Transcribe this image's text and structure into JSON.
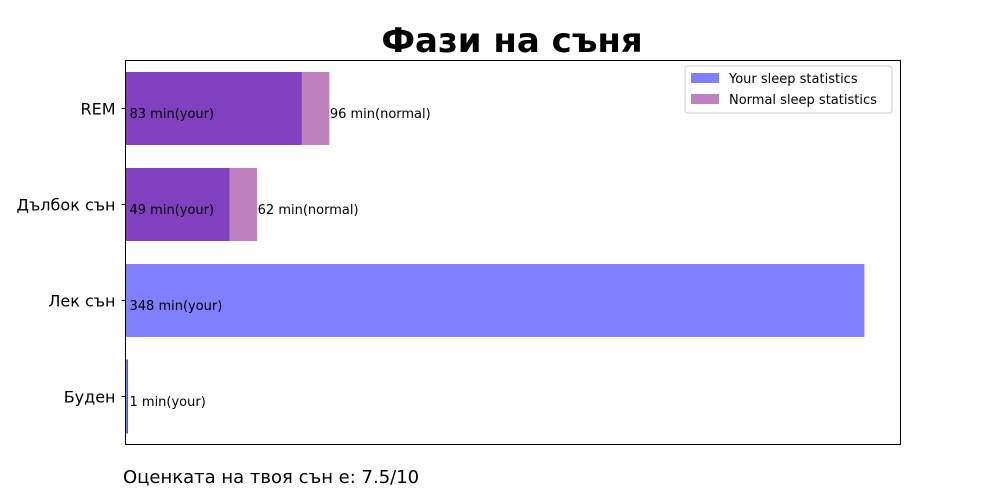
{
  "chart_data": {
    "type": "bar",
    "orientation": "horizontal",
    "overlay": true,
    "title": "Фази на съня",
    "categories": [
      "Буден",
      "Лек сън",
      "Дълбок сън",
      "REM"
    ],
    "xlim": [
      0,
      365
    ],
    "grid": false,
    "legend_position": "top-right",
    "series": [
      {
        "name": "Your sleep statistics",
        "color": "#8080ff",
        "values": [
          1,
          348,
          49,
          83
        ],
        "labels": [
          "1 min(your)",
          "348 min(your)",
          "49 min(your)",
          "83 min(your)"
        ]
      },
      {
        "name": "Normal sleep statistics",
        "color": "#bf80bf",
        "values": [
          null,
          null,
          62,
          96
        ],
        "labels": [
          null,
          null,
          "62 min(normal)",
          "96 min(normal)"
        ]
      }
    ],
    "overlap_color": "#8040c0"
  },
  "footer": {
    "score_text": "Оценката на твоя сън е: 7.5/10"
  }
}
